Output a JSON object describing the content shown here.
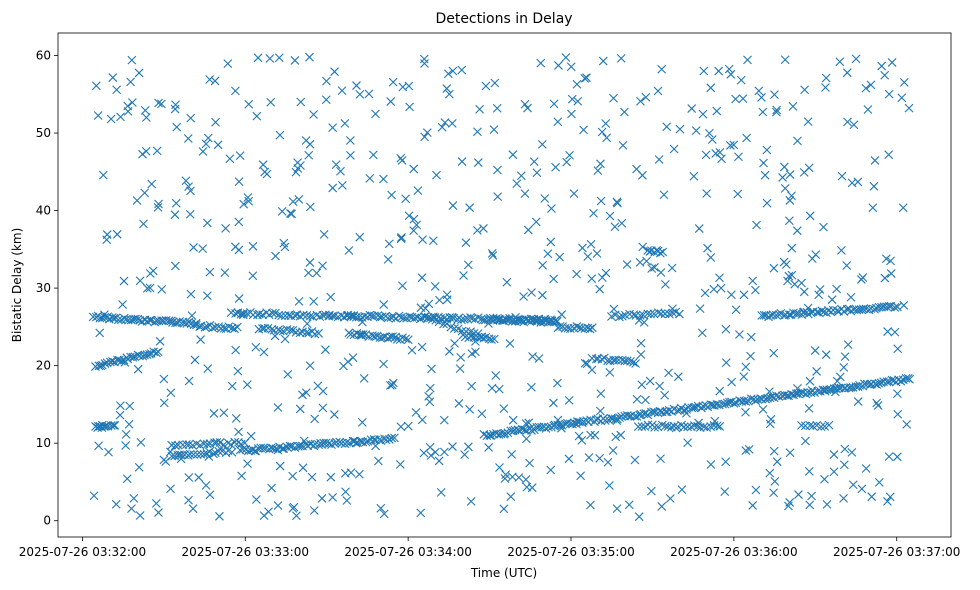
{
  "chart_data": {
    "type": "scatter",
    "title": "Detections in Delay",
    "xlabel": "Time (UTC)",
    "ylabel": "Bistatic Delay (km)",
    "x_start": "2025-07-26 03:31:51",
    "x_end": "2025-07-26 03:37:20",
    "xticks": [
      "2025-07-26 03:32:00",
      "2025-07-26 03:33:00",
      "2025-07-26 03:34:00",
      "2025-07-26 03:35:00",
      "2025-07-26 03:36:00",
      "2025-07-26 03:37:00"
    ],
    "ylim": [
      -2.1,
      62.9
    ],
    "yticks": [
      0,
      10,
      20,
      30,
      40,
      50,
      60
    ],
    "grid": false,
    "marker": "x",
    "color": "#1f77b4",
    "tracks": [
      {
        "from": [
          "2025-07-26 03:32:04",
          26.3
        ],
        "to": [
          "2025-07-26 03:32:42",
          25.4
        ],
        "points": 45
      },
      {
        "from": [
          "2025-07-26 03:32:42",
          25.2
        ],
        "to": [
          "2025-07-26 03:32:57",
          24.8
        ],
        "points": 16
      },
      {
        "from": [
          "2025-07-26 03:33:05",
          24.8
        ],
        "to": [
          "2025-07-26 03:33:27",
          24.2
        ],
        "points": 20
      },
      {
        "from": [
          "2025-07-26 03:33:38",
          24.1
        ],
        "to": [
          "2025-07-26 03:34:00",
          23.4
        ],
        "points": 24
      },
      {
        "from": [
          "2025-07-26 03:33:38",
          26.4
        ],
        "to": [
          "2025-07-26 03:34:55",
          25.8
        ],
        "points": 80
      },
      {
        "from": [
          "2025-07-26 03:32:55",
          26.8
        ],
        "to": [
          "2025-07-26 03:33:40",
          26.3
        ],
        "points": 40
      },
      {
        "from": [
          "2025-07-26 03:34:06",
          26.2
        ],
        "to": [
          "2025-07-26 03:34:27",
          23.8
        ],
        "points": 16
      },
      {
        "from": [
          "2025-07-26 03:34:30",
          26.0
        ],
        "to": [
          "2025-07-26 03:34:55",
          25.6
        ],
        "points": 25
      },
      {
        "from": [
          "2025-07-26 03:34:20",
          23.8
        ],
        "to": [
          "2025-07-26 03:34:32",
          23.5
        ],
        "points": 12
      },
      {
        "from": [
          "2025-07-26 03:34:55",
          25.0
        ],
        "to": [
          "2025-07-26 03:35:08",
          24.8
        ],
        "points": 14
      },
      {
        "from": [
          "2025-07-26 03:35:08",
          21.0
        ],
        "to": [
          "2025-07-26 03:35:24",
          20.4
        ],
        "points": 16
      },
      {
        "from": [
          "2025-07-26 03:35:15",
          26.4
        ],
        "to": [
          "2025-07-26 03:35:40",
          26.8
        ],
        "points": 20
      },
      {
        "from": [
          "2025-07-26 03:35:28",
          34.8
        ],
        "to": [
          "2025-07-26 03:35:34",
          34.6
        ],
        "points": 8
      },
      {
        "from": [
          "2025-07-26 03:36:10",
          26.4
        ],
        "to": [
          "2025-07-26 03:37:00",
          27.6
        ],
        "points": 55
      },
      {
        "from": [
          "2025-07-26 03:32:05",
          20.0
        ],
        "to": [
          "2025-07-26 03:32:28",
          21.8
        ],
        "points": 28
      },
      {
        "from": [
          "2025-07-26 03:32:05",
          12.2
        ],
        "to": [
          "2025-07-26 03:32:12",
          12.2
        ],
        "points": 10
      },
      {
        "from": [
          "2025-07-26 03:32:33",
          8.3
        ],
        "to": [
          "2025-07-26 03:32:55",
          9.0
        ],
        "points": 20
      },
      {
        "from": [
          "2025-07-26 03:32:33",
          9.8
        ],
        "to": [
          "2025-07-26 03:33:00",
          10.0
        ],
        "points": 22
      },
      {
        "from": [
          "2025-07-26 03:32:58",
          9.0
        ],
        "to": [
          "2025-07-26 03:33:55",
          10.6
        ],
        "points": 60
      },
      {
        "from": [
          "2025-07-26 03:34:28",
          11.0
        ],
        "to": [
          "2025-07-26 03:37:05",
          18.3
        ],
        "points": 180
      },
      {
        "from": [
          "2025-07-26 03:35:25",
          12.2
        ],
        "to": [
          "2025-07-26 03:35:55",
          12.2
        ],
        "points": 26
      },
      {
        "from": [
          "2025-07-26 03:36:25",
          12.2
        ],
        "to": [
          "2025-07-26 03:36:35",
          12.2
        ],
        "points": 8
      }
    ],
    "clutter": {
      "x_from": "2025-07-26 03:32:04",
      "x_to": "2025-07-26 03:37:05",
      "y_from": 0.5,
      "y_to": 59.8,
      "points": 720
    }
  }
}
